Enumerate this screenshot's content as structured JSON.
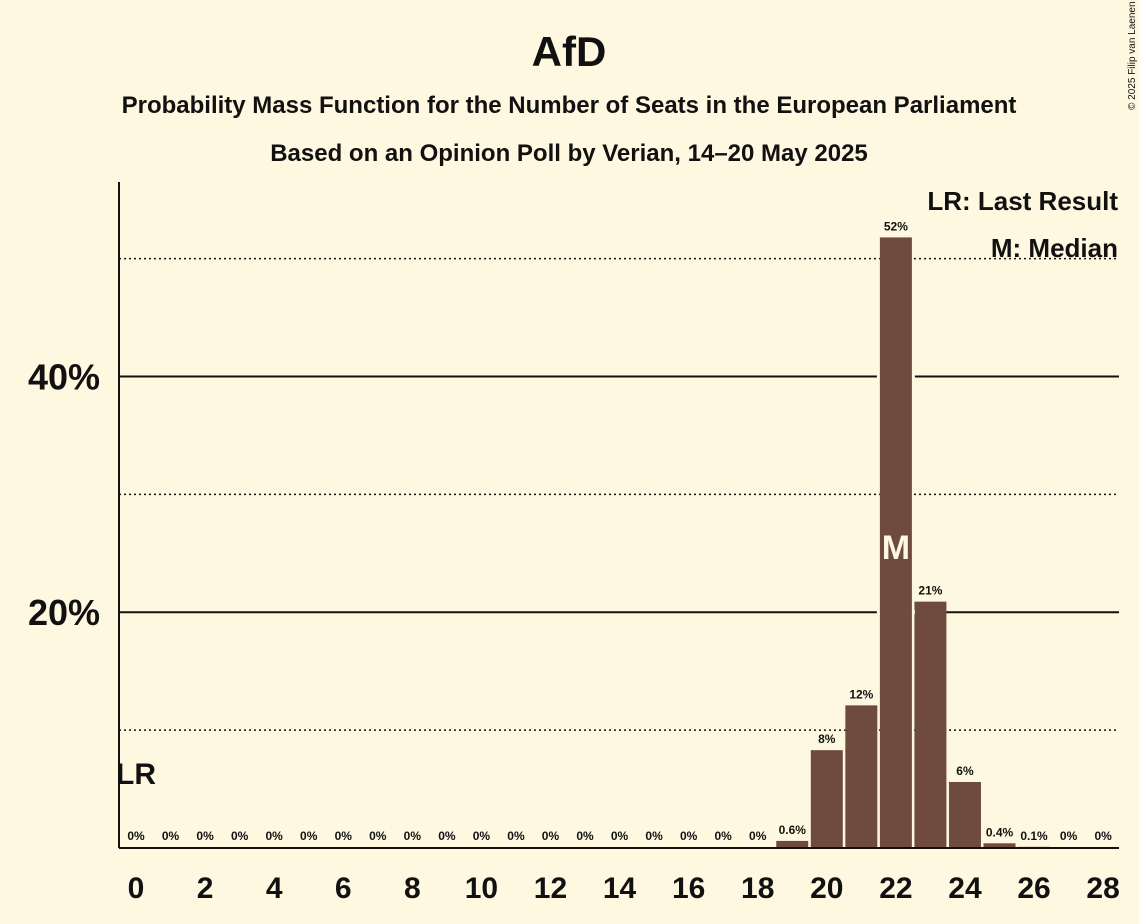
{
  "colors": {
    "background": "#fff8e1",
    "bar": "#6f4a3e",
    "text": "#111111"
  },
  "chart_data": {
    "type": "bar",
    "title": "AfD",
    "subtitle_1": "Probability Mass Function for the Number of Seats in the European Parliament",
    "subtitle_2": "Based on an Opinion Poll by Verian, 14–20 May 2025",
    "copyright": "© 2025 Filip van Laenen",
    "legend": [
      "LR: Last Result",
      "M: Median"
    ],
    "x": [
      0,
      1,
      2,
      3,
      4,
      5,
      6,
      7,
      8,
      9,
      10,
      11,
      12,
      13,
      14,
      15,
      16,
      17,
      18,
      19,
      20,
      21,
      22,
      23,
      24,
      25,
      26,
      27,
      28
    ],
    "values": [
      0,
      0,
      0,
      0,
      0,
      0,
      0,
      0,
      0,
      0,
      0,
      0,
      0,
      0,
      0,
      0,
      0,
      0,
      0,
      0.6,
      8.3,
      12.1,
      51.8,
      20.9,
      5.6,
      0.4,
      0.1,
      0,
      0
    ],
    "data_labels": [
      "0%",
      "0%",
      "0%",
      "0%",
      "0%",
      "0%",
      "0%",
      "0%",
      "0%",
      "0%",
      "0%",
      "0%",
      "0%",
      "0%",
      "0%",
      "0%",
      "0%",
      "0%",
      "0%",
      "0.6%",
      "8%",
      "12%",
      "52%",
      "21%",
      "6%",
      "0.4%",
      "0.1%",
      "0%",
      "0%"
    ],
    "x_tick_labels": [
      "0",
      "2",
      "4",
      "6",
      "8",
      "10",
      "12",
      "14",
      "16",
      "18",
      "20",
      "22",
      "24",
      "26",
      "28"
    ],
    "y_ticks": [
      {
        "value": 20,
        "label": "20%"
      },
      {
        "value": 40,
        "label": "40%"
      }
    ],
    "y_dotted_lines": [
      10,
      30,
      50
    ],
    "ylim": [
      0,
      56.5
    ],
    "last_result": {
      "seat": 0,
      "label": "LR"
    },
    "median": {
      "seat": 22,
      "label": "M"
    },
    "legend_position": "top-right",
    "grid": true
  }
}
